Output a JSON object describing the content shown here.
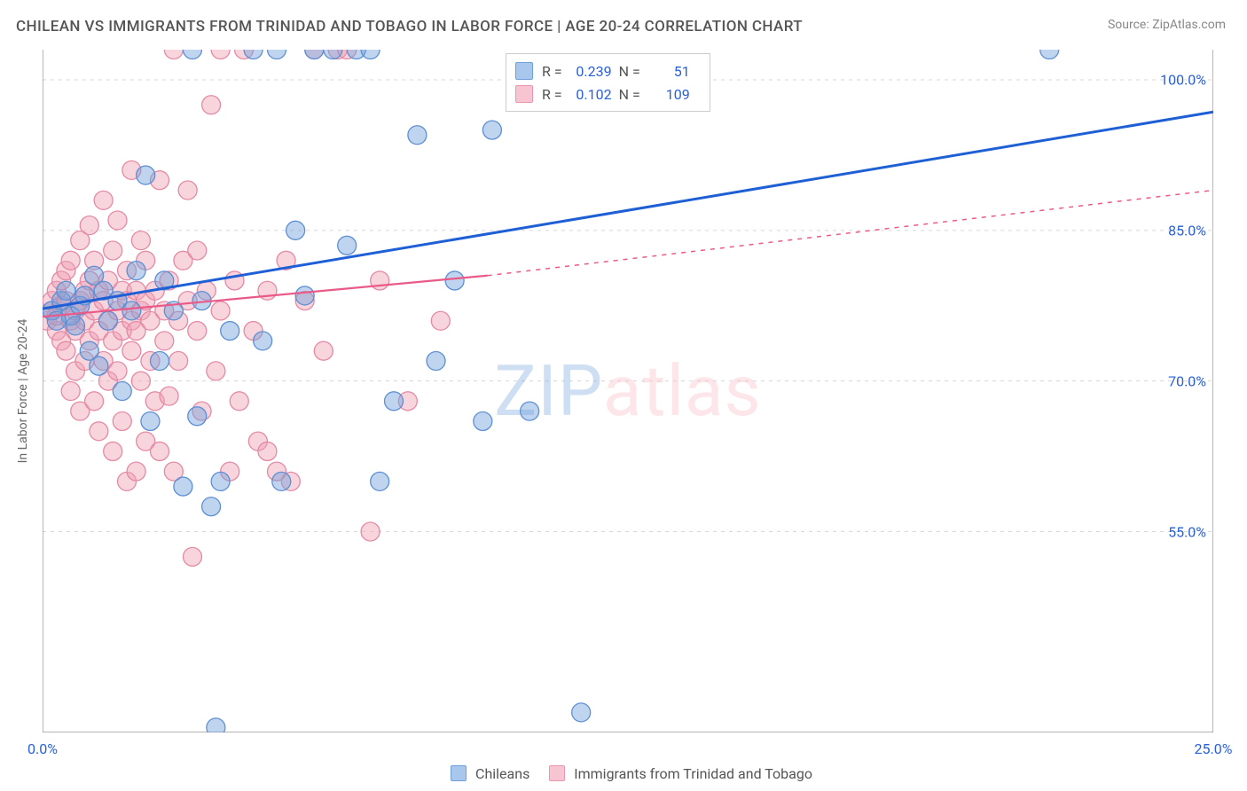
{
  "title": "CHILEAN VS IMMIGRANTS FROM TRINIDAD AND TOBAGO IN LABOR FORCE | AGE 20-24 CORRELATION CHART",
  "source": "Source: ZipAtlas.com",
  "ylabel": "In Labor Force | Age 20-24",
  "watermark_a": "ZIP",
  "watermark_b": "atlas",
  "chart": {
    "type": "scatter",
    "xlim": [
      0,
      25
    ],
    "ylim": [
      35,
      103
    ],
    "xticks": [
      0,
      25
    ],
    "xtick_labels": [
      "0.0%",
      "25.0%"
    ],
    "yticks": [
      55,
      70,
      85,
      100
    ],
    "ytick_labels": [
      "55.0%",
      "70.0%",
      "85.0%",
      "100.0%"
    ],
    "grid_color": "#d7d7d7",
    "axis_color": "#888888",
    "minor_xticks": [
      3,
      6,
      9,
      12,
      15,
      18,
      21
    ],
    "series": [
      {
        "id": "chileans",
        "label": "Chileans",
        "color_fill": "rgba(110,160,220,0.45)",
        "color_stroke": "#5d8fd3",
        "swatch_fill": "#a9c6ec",
        "swatch_stroke": "#6f9fd8",
        "trend_color": "#1e5fd6",
        "trend_width": 3,
        "trend_dash": "",
        "trend_from": [
          0,
          77.2
        ],
        "trend_to": [
          25,
          96.8
        ],
        "R": "0.239",
        "N": "51",
        "points": [
          [
            0.2,
            77
          ],
          [
            0.4,
            78
          ],
          [
            0.6,
            76.5
          ],
          [
            0.8,
            77.5
          ],
          [
            0.5,
            79
          ],
          [
            0.3,
            76
          ],
          [
            0.7,
            75.5
          ],
          [
            0.9,
            78.5
          ],
          [
            1.1,
            80.5
          ],
          [
            1.0,
            73
          ],
          [
            1.2,
            71.5
          ],
          [
            1.3,
            79
          ],
          [
            1.4,
            76
          ],
          [
            1.7,
            69
          ],
          [
            1.6,
            78
          ],
          [
            1.9,
            77
          ],
          [
            2.0,
            81
          ],
          [
            2.3,
            66
          ],
          [
            2.2,
            90.5
          ],
          [
            2.6,
            80
          ],
          [
            2.8,
            77
          ],
          [
            2.5,
            72
          ],
          [
            3.0,
            59.5
          ],
          [
            3.2,
            103
          ],
          [
            3.4,
            78
          ],
          [
            3.3,
            66.5
          ],
          [
            3.6,
            57.5
          ],
          [
            3.7,
            35.5
          ],
          [
            3.8,
            60
          ],
          [
            4.0,
            75
          ],
          [
            4.5,
            103
          ],
          [
            4.7,
            74
          ],
          [
            5.0,
            103
          ],
          [
            5.1,
            60
          ],
          [
            5.4,
            85
          ],
          [
            5.6,
            78.5
          ],
          [
            5.8,
            103
          ],
          [
            6.2,
            103
          ],
          [
            6.5,
            83.5
          ],
          [
            6.7,
            103
          ],
          [
            7.0,
            103
          ],
          [
            7.2,
            60
          ],
          [
            7.5,
            68
          ],
          [
            8.0,
            94.5
          ],
          [
            8.4,
            72
          ],
          [
            8.8,
            80
          ],
          [
            9.4,
            66
          ],
          [
            9.6,
            95
          ],
          [
            10.4,
            67
          ],
          [
            11.5,
            37
          ],
          [
            21.5,
            103
          ]
        ]
      },
      {
        "id": "tt",
        "label": "Immigrants from Trinidad and Tobago",
        "color_fill": "rgba(240,160,180,0.45)",
        "color_stroke": "#e48aa5",
        "swatch_fill": "#f6c5d1",
        "swatch_stroke": "#ec95ae",
        "trend_color": "#ea5a88",
        "trend_width": 2.2,
        "trend_dash_ext": "5,6",
        "trend_from": [
          0,
          76.4
        ],
        "trend_solid_to": [
          9.5,
          80.5
        ],
        "trend_dash_to": [
          25,
          89
        ],
        "R": "0.102",
        "N": "109",
        "points": [
          [
            0.1,
            76
          ],
          [
            0.2,
            77
          ],
          [
            0.2,
            78
          ],
          [
            0.3,
            75
          ],
          [
            0.3,
            79
          ],
          [
            0.3,
            76.5
          ],
          [
            0.4,
            74
          ],
          [
            0.4,
            77.5
          ],
          [
            0.4,
            80
          ],
          [
            0.5,
            78
          ],
          [
            0.5,
            73
          ],
          [
            0.5,
            81
          ],
          [
            0.6,
            76
          ],
          [
            0.6,
            69
          ],
          [
            0.6,
            82
          ],
          [
            0.7,
            75
          ],
          [
            0.7,
            77
          ],
          [
            0.7,
            71
          ],
          [
            0.8,
            78
          ],
          [
            0.8,
            84
          ],
          [
            0.8,
            67
          ],
          [
            0.9,
            76
          ],
          [
            0.9,
            79
          ],
          [
            0.9,
            72
          ],
          [
            1.0,
            80
          ],
          [
            1.0,
            74
          ],
          [
            1.0,
            85.5
          ],
          [
            1.1,
            77
          ],
          [
            1.1,
            68
          ],
          [
            1.1,
            82
          ],
          [
            1.2,
            75
          ],
          [
            1.2,
            79
          ],
          [
            1.2,
            65
          ],
          [
            1.3,
            78
          ],
          [
            1.3,
            72
          ],
          [
            1.3,
            88
          ],
          [
            1.4,
            76
          ],
          [
            1.4,
            70
          ],
          [
            1.4,
            80
          ],
          [
            1.5,
            74
          ],
          [
            1.5,
            83
          ],
          [
            1.5,
            63
          ],
          [
            1.6,
            77
          ],
          [
            1.6,
            71
          ],
          [
            1.6,
            86
          ],
          [
            1.7,
            79
          ],
          [
            1.7,
            75
          ],
          [
            1.7,
            66
          ],
          [
            1.8,
            78
          ],
          [
            1.8,
            81
          ],
          [
            1.8,
            60
          ],
          [
            1.9,
            76
          ],
          [
            1.9,
            73
          ],
          [
            1.9,
            91
          ],
          [
            2.0,
            61
          ],
          [
            2.0,
            79
          ],
          [
            2.0,
            75
          ],
          [
            2.1,
            77
          ],
          [
            2.1,
            70
          ],
          [
            2.1,
            84
          ],
          [
            2.2,
            78
          ],
          [
            2.2,
            64
          ],
          [
            2.2,
            82
          ],
          [
            2.3,
            72
          ],
          [
            2.3,
            76
          ],
          [
            2.4,
            79
          ],
          [
            2.4,
            68
          ],
          [
            2.5,
            90
          ],
          [
            2.5,
            63
          ],
          [
            2.6,
            74
          ],
          [
            2.6,
            77
          ],
          [
            2.7,
            80
          ],
          [
            2.7,
            68.5
          ],
          [
            2.8,
            61
          ],
          [
            2.8,
            103
          ],
          [
            2.9,
            76
          ],
          [
            2.9,
            72
          ],
          [
            3.0,
            82
          ],
          [
            3.1,
            78
          ],
          [
            3.1,
            89
          ],
          [
            3.2,
            52.5
          ],
          [
            3.3,
            75
          ],
          [
            3.3,
            83
          ],
          [
            3.4,
            67
          ],
          [
            3.5,
            79
          ],
          [
            3.6,
            97.5
          ],
          [
            3.7,
            71
          ],
          [
            3.8,
            103
          ],
          [
            3.8,
            77
          ],
          [
            4.0,
            61
          ],
          [
            4.1,
            80
          ],
          [
            4.2,
            68
          ],
          [
            4.3,
            103
          ],
          [
            4.5,
            75
          ],
          [
            4.6,
            64
          ],
          [
            4.8,
            63
          ],
          [
            4.8,
            79
          ],
          [
            5.0,
            61
          ],
          [
            5.2,
            82
          ],
          [
            5.3,
            60
          ],
          [
            5.6,
            78
          ],
          [
            5.8,
            103
          ],
          [
            6.0,
            73
          ],
          [
            6.3,
            103
          ],
          [
            6.5,
            103
          ],
          [
            7.0,
            55
          ],
          [
            7.2,
            80
          ],
          [
            7.8,
            68
          ],
          [
            8.5,
            76
          ]
        ]
      }
    ]
  },
  "corr_legend_cols": {
    "r_label": "R =",
    "n_label": "N ="
  }
}
